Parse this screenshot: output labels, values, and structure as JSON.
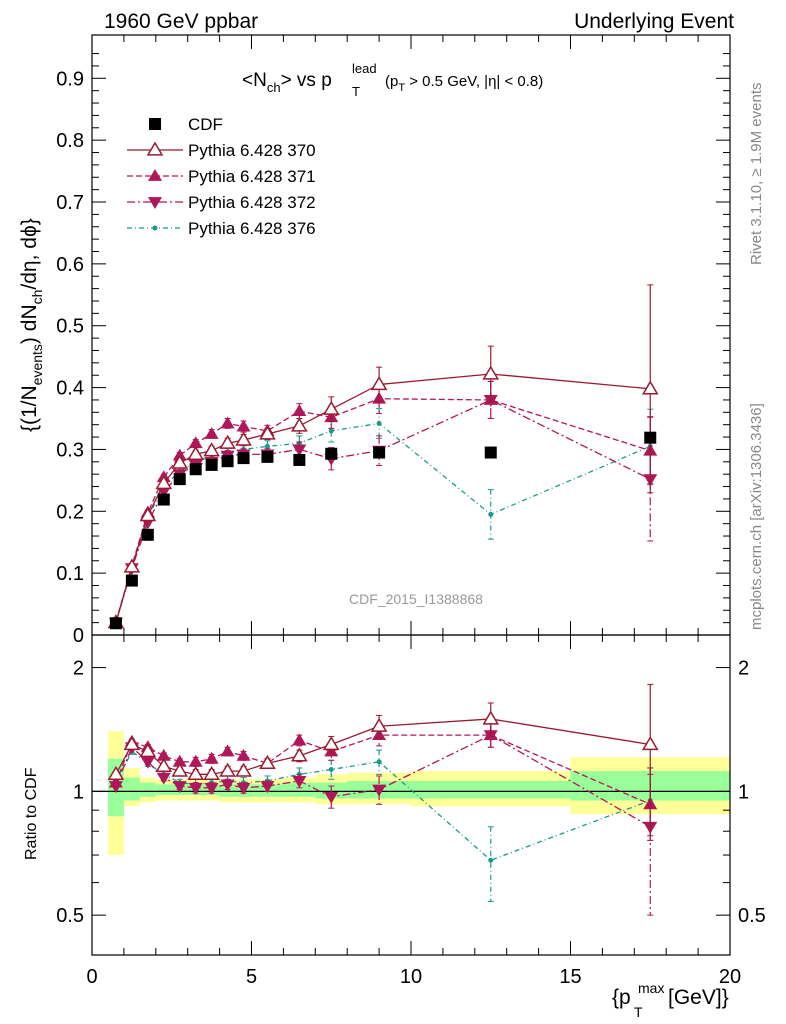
{
  "header": {
    "left": "1960 GeV ppbar",
    "right": "Underlying Event"
  },
  "side_labels": {
    "rivet": "Rivet 3.1.10, ≥ 1.9M events",
    "mcplots": "mcplots.cern.ch [arXiv:1306.3436]"
  },
  "plot_title": {
    "main": "<N",
    "ch": "ch",
    "vs": "> vs p",
    "lead": "lead",
    "T": "T",
    "cut1": "(p",
    "cut1b": " > 0.5 GeV, ",
    "eta": "|η| < 0.8)"
  },
  "watermark": "CDF_2015_I1388868",
  "axes": {
    "ylabel_top": "{(1/N",
    "ylabel_events": "events",
    "ylabel_mid": ") dN",
    "ylabel_ch": "ch",
    "ylabel_end": "/dη, dϕ}",
    "ylabel_ratio": "Ratio to CDF",
    "xlabel_main": "{p",
    "xlabel_sup": "max",
    "xlabel_sub": "T",
    "xlabel_end": " [GeV]}"
  },
  "colors": {
    "cdf": "#000000",
    "p370": "#9a1b2f",
    "p371": "#b0175a",
    "p372": "#b0175a",
    "p376": "#1a9a8a",
    "band_yellow": "#ffff99",
    "band_green": "#99ff99"
  },
  "chart_data": [
    {
      "type": "scatter",
      "panel": "main",
      "xlim": [
        0,
        20
      ],
      "ylim": [
        0,
        0.97
      ],
      "xticks": [
        0,
        5,
        10,
        15,
        20
      ],
      "yticks": [
        0,
        0.1,
        0.2,
        0.3,
        0.4,
        0.5,
        0.6,
        0.7,
        0.8,
        0.9
      ],
      "ytick_labels": [
        "0",
        "0.1",
        "0.2",
        "0.3",
        "0.4",
        "0.5",
        "0.6",
        "0.7",
        "0.8",
        "0.9"
      ],
      "legend_position": "top-left",
      "series": [
        {
          "name": "CDF",
          "style": "data",
          "x": [
            0.75,
            1.25,
            1.75,
            2.25,
            2.75,
            3.25,
            3.75,
            4.25,
            4.75,
            5.5,
            6.5,
            7.5,
            9.0,
            12.5,
            17.5
          ],
          "y": [
            0.019,
            0.088,
            0.162,
            0.219,
            0.252,
            0.268,
            0.275,
            0.281,
            0.286,
            0.288,
            0.283,
            0.293,
            0.295,
            0.295,
            0.319
          ]
        },
        {
          "name": "Pythia 6.428 370",
          "style": "solid-open-triangle",
          "x": [
            0.75,
            1.25,
            1.75,
            2.25,
            2.75,
            3.25,
            3.75,
            4.25,
            4.75,
            5.5,
            6.5,
            7.5,
            9.0,
            12.5,
            17.5
          ],
          "y": [
            0.02,
            0.11,
            0.193,
            0.245,
            0.278,
            0.292,
            0.298,
            0.31,
            0.315,
            0.325,
            0.338,
            0.365,
            0.405,
            0.422,
            0.398
          ],
          "err": [
            0.002,
            0.003,
            0.004,
            0.004,
            0.005,
            0.006,
            0.007,
            0.008,
            0.009,
            0.009,
            0.012,
            0.02,
            0.028,
            0.045,
            0.168
          ]
        },
        {
          "name": "Pythia 6.428 371",
          "style": "dashed-filled-triangle-up",
          "x": [
            0.75,
            1.25,
            1.75,
            2.25,
            2.75,
            3.25,
            3.75,
            4.25,
            4.75,
            5.5,
            6.5,
            7.5,
            9.0,
            12.5,
            17.5
          ],
          "y": [
            0.021,
            0.112,
            0.198,
            0.255,
            0.29,
            0.31,
            0.325,
            0.342,
            0.337,
            0.33,
            0.362,
            0.352,
            0.382,
            0.38,
            0.298
          ],
          "err": [
            0.002,
            0.003,
            0.004,
            0.004,
            0.005,
            0.006,
            0.007,
            0.008,
            0.009,
            0.009,
            0.012,
            0.018,
            0.024,
            0.03,
            0.055
          ]
        },
        {
          "name": "Pythia 6.428 372",
          "style": "dashdot-filled-triangle-down",
          "x": [
            0.75,
            1.25,
            1.75,
            2.25,
            2.75,
            3.25,
            3.75,
            4.25,
            4.75,
            5.5,
            6.5,
            7.5,
            9.0,
            12.5,
            17.5
          ],
          "y": [
            0.02,
            0.108,
            0.182,
            0.232,
            0.26,
            0.275,
            0.28,
            0.29,
            0.292,
            0.292,
            0.3,
            0.285,
            0.298,
            0.38,
            0.252
          ],
          "err": [
            0.002,
            0.003,
            0.004,
            0.004,
            0.005,
            0.006,
            0.007,
            0.008,
            0.009,
            0.009,
            0.012,
            0.018,
            0.024,
            0.03,
            0.1
          ]
        },
        {
          "name": "Pythia 6.428 376",
          "style": "dotdash-small-marker",
          "x": [
            0.75,
            1.25,
            1.75,
            2.25,
            2.75,
            3.25,
            3.75,
            4.25,
            4.75,
            5.5,
            6.5,
            7.5,
            9.0,
            12.5,
            17.5
          ],
          "y": [
            0.02,
            0.11,
            0.19,
            0.24,
            0.265,
            0.28,
            0.29,
            0.296,
            0.3,
            0.305,
            0.31,
            0.33,
            0.342,
            0.195,
            0.305
          ],
          "err": [
            0.002,
            0.003,
            0.004,
            0.004,
            0.005,
            0.006,
            0.007,
            0.008,
            0.009,
            0.009,
            0.012,
            0.018,
            0.024,
            0.04,
            0.06
          ]
        }
      ]
    },
    {
      "type": "scatter",
      "panel": "ratio",
      "xlim": [
        0,
        20
      ],
      "ylim": [
        0.4,
        2.4
      ],
      "ylog": true,
      "yticks": [
        0.5,
        1,
        2
      ],
      "ytick_labels": [
        "0.5",
        "1",
        "2"
      ],
      "x_tick_labels": [
        "0",
        "5",
        "10",
        "15",
        "20"
      ],
      "bands": {
        "x_edges": [
          0.5,
          1.0,
          1.5,
          2.0,
          2.5,
          3.0,
          3.5,
          4.0,
          4.5,
          5.0,
          6.0,
          7.0,
          8.0,
          10.0,
          15.0,
          20.0
        ],
        "yellow_lo": [
          0.7,
          0.92,
          0.94,
          0.95,
          0.95,
          0.95,
          0.95,
          0.94,
          0.94,
          0.94,
          0.94,
          0.93,
          0.93,
          0.92,
          0.88
        ],
        "yellow_hi": [
          1.4,
          1.14,
          1.08,
          1.07,
          1.07,
          1.07,
          1.07,
          1.07,
          1.07,
          1.07,
          1.08,
          1.1,
          1.11,
          1.12,
          1.21
        ],
        "green_lo": [
          0.87,
          0.95,
          0.97,
          0.98,
          0.98,
          0.98,
          0.98,
          0.97,
          0.97,
          0.97,
          0.97,
          0.96,
          0.96,
          0.96,
          0.95
        ],
        "green_hi": [
          1.2,
          1.08,
          1.05,
          1.04,
          1.04,
          1.04,
          1.04,
          1.04,
          1.04,
          1.04,
          1.05,
          1.05,
          1.06,
          1.06,
          1.12
        ]
      },
      "series": [
        {
          "name": "Pythia 6.428 370",
          "x": [
            0.75,
            1.25,
            1.75,
            2.25,
            2.75,
            3.25,
            3.75,
            4.25,
            4.75,
            5.5,
            6.5,
            7.5,
            9.0,
            12.5,
            17.5
          ],
          "y": [
            1.1,
            1.3,
            1.25,
            1.15,
            1.12,
            1.1,
            1.1,
            1.12,
            1.12,
            1.17,
            1.22,
            1.3,
            1.44,
            1.5,
            1.3
          ],
          "err": [
            0.01,
            0.02,
            0.02,
            0.02,
            0.02,
            0.03,
            0.03,
            0.03,
            0.03,
            0.03,
            0.04,
            0.06,
            0.09,
            0.14,
            0.52
          ]
        },
        {
          "name": "Pythia 6.428 371",
          "x": [
            0.75,
            1.25,
            1.75,
            2.25,
            2.75,
            3.25,
            3.75,
            4.25,
            4.75,
            5.5,
            6.5,
            7.5,
            9.0,
            12.5,
            17.5
          ],
          "y": [
            1.05,
            1.32,
            1.28,
            1.22,
            1.18,
            1.18,
            1.2,
            1.25,
            1.22,
            1.17,
            1.33,
            1.25,
            1.37,
            1.37,
            0.93
          ],
          "err": [
            0.01,
            0.02,
            0.02,
            0.02,
            0.02,
            0.03,
            0.03,
            0.03,
            0.03,
            0.03,
            0.04,
            0.06,
            0.08,
            0.09,
            0.17
          ]
        },
        {
          "name": "Pythia 6.428 372",
          "x": [
            0.75,
            1.25,
            1.75,
            2.25,
            2.75,
            3.25,
            3.75,
            4.25,
            4.75,
            5.5,
            6.5,
            7.5,
            9.0,
            12.5,
            17.5
          ],
          "y": [
            1.03,
            1.28,
            1.18,
            1.08,
            1.03,
            1.02,
            1.02,
            1.04,
            1.02,
            1.03,
            1.06,
            0.97,
            1.01,
            1.37,
            0.82
          ],
          "err": [
            0.01,
            0.02,
            0.02,
            0.02,
            0.02,
            0.03,
            0.03,
            0.03,
            0.03,
            0.03,
            0.04,
            0.06,
            0.08,
            0.09,
            0.32
          ]
        },
        {
          "name": "Pythia 6.428 376",
          "x": [
            0.75,
            1.25,
            1.75,
            2.25,
            2.75,
            3.25,
            3.75,
            4.25,
            4.75,
            5.5,
            6.5,
            7.5,
            9.0,
            12.5,
            17.5
          ],
          "y": [
            1.05,
            1.25,
            1.17,
            1.1,
            1.05,
            1.04,
            1.05,
            1.06,
            1.05,
            1.06,
            1.1,
            1.13,
            1.18,
            0.68,
            0.95
          ],
          "err": [
            0.01,
            0.02,
            0.02,
            0.02,
            0.02,
            0.03,
            0.03,
            0.03,
            0.03,
            0.03,
            0.04,
            0.06,
            0.08,
            0.14,
            0.19
          ]
        }
      ]
    }
  ]
}
